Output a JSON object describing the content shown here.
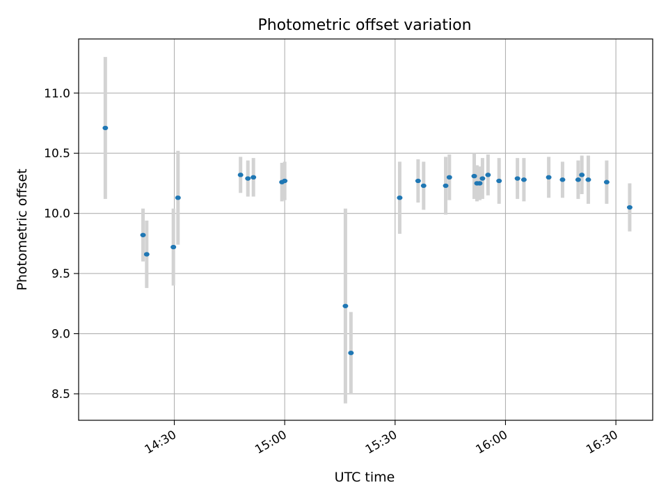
{
  "chart_data": {
    "type": "scatter",
    "title": "Photometric offset variation",
    "xlabel": "UTC time",
    "ylabel": "Photometric offset",
    "x_tick_labels": [
      "14:30",
      "15:00",
      "15:30",
      "16:00",
      "16:30"
    ],
    "x_tick_times": [
      "14:30",
      "15:00",
      "15:30",
      "16:00",
      "16:30"
    ],
    "y_tick_labels": [
      "8.5",
      "9.0",
      "9.5",
      "10.0",
      "10.5",
      "11.0"
    ],
    "y_tick_values": [
      8.5,
      9.0,
      9.5,
      10.0,
      10.5,
      11.0
    ],
    "xlim": [
      "14:04",
      "16:40"
    ],
    "ylim": [
      8.28,
      11.45
    ],
    "grid": true,
    "errorbar_color": "#d3d3d3",
    "point_color": "#1f77b4",
    "points": [
      {
        "t": "14:11:15",
        "y": 10.71,
        "err": 0.59
      },
      {
        "t": "14:21:30",
        "y": 9.82,
        "err": 0.22
      },
      {
        "t": "14:22:30",
        "y": 9.66,
        "err": 0.28
      },
      {
        "t": "14:29:45",
        "y": 9.72,
        "err": 0.32
      },
      {
        "t": "14:31:00",
        "y": 10.13,
        "err": 0.39
      },
      {
        "t": "14:48:00",
        "y": 10.32,
        "err": 0.15
      },
      {
        "t": "14:50:00",
        "y": 10.29,
        "err": 0.15
      },
      {
        "t": "14:51:30",
        "y": 10.3,
        "err": 0.16
      },
      {
        "t": "14:59:15",
        "y": 10.26,
        "err": 0.16
      },
      {
        "t": "15:00:00",
        "y": 10.27,
        "err": 0.16
      },
      {
        "t": "15:16:30",
        "y": 9.23,
        "err": 0.81
      },
      {
        "t": "15:18:00",
        "y": 8.84,
        "err": 0.34
      },
      {
        "t": "15:31:15",
        "y": 10.13,
        "err": 0.3
      },
      {
        "t": "15:36:15",
        "y": 10.27,
        "err": 0.18
      },
      {
        "t": "15:37:45",
        "y": 10.23,
        "err": 0.2
      },
      {
        "t": "15:43:45",
        "y": 10.23,
        "err": 0.24
      },
      {
        "t": "15:44:45",
        "y": 10.3,
        "err": 0.19
      },
      {
        "t": "15:51:30",
        "y": 10.31,
        "err": 0.19
      },
      {
        "t": "15:52:15",
        "y": 10.25,
        "err": 0.15
      },
      {
        "t": "15:53:00",
        "y": 10.25,
        "err": 0.14
      },
      {
        "t": "15:53:45",
        "y": 10.29,
        "err": 0.17
      },
      {
        "t": "15:55:15",
        "y": 10.32,
        "err": 0.17
      },
      {
        "t": "15:58:15",
        "y": 10.27,
        "err": 0.19
      },
      {
        "t": "16:03:15",
        "y": 10.29,
        "err": 0.17
      },
      {
        "t": "16:05:00",
        "y": 10.28,
        "err": 0.18
      },
      {
        "t": "16:11:45",
        "y": 10.3,
        "err": 0.17
      },
      {
        "t": "16:15:30",
        "y": 10.28,
        "err": 0.15
      },
      {
        "t": "16:19:45",
        "y": 10.28,
        "err": 0.16
      },
      {
        "t": "16:20:45",
        "y": 10.32,
        "err": 0.16
      },
      {
        "t": "16:22:30",
        "y": 10.28,
        "err": 0.2
      },
      {
        "t": "16:27:30",
        "y": 10.26,
        "err": 0.18
      },
      {
        "t": "16:33:45",
        "y": 10.05,
        "err": 0.2
      }
    ]
  }
}
